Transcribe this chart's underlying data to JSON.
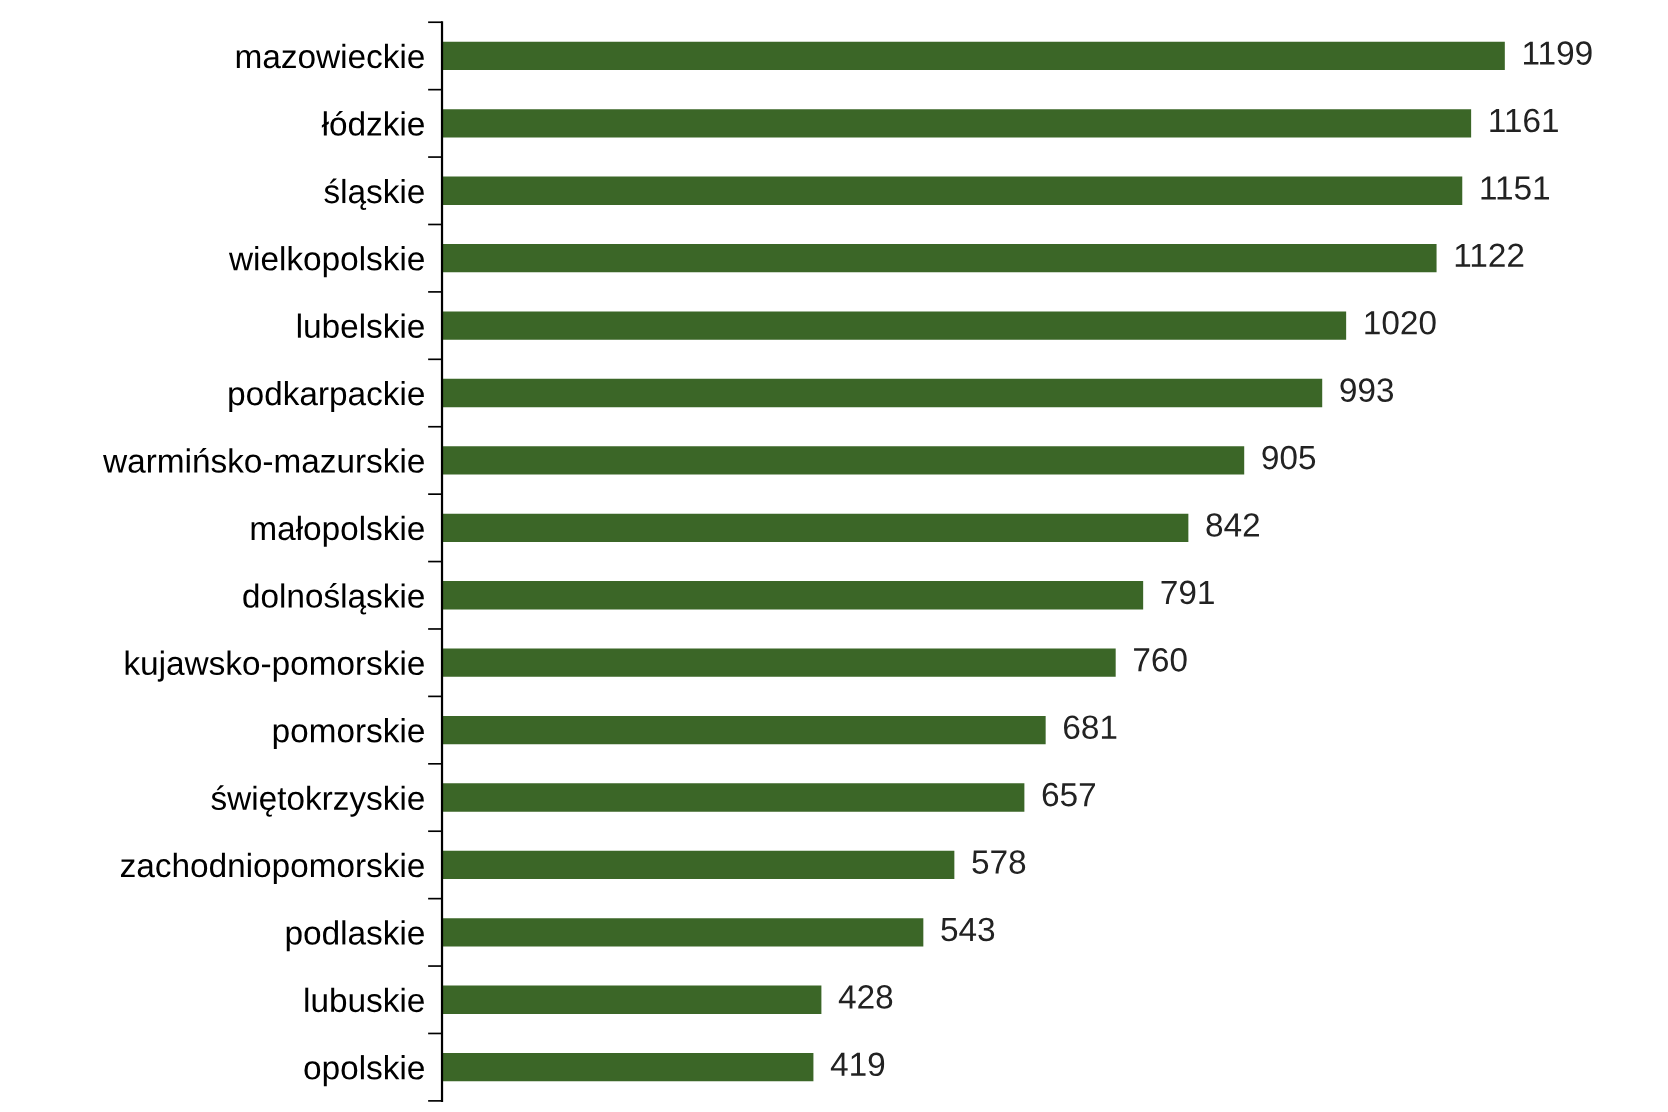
{
  "chart_data": {
    "type": "bar",
    "orientation": "horizontal",
    "categories": [
      "mazowieckie",
      "łódzkie",
      "śląskie",
      "wielkopolskie",
      "lubelskie",
      "podkarpackie",
      "warmińsko-mazurskie",
      "małopolskie",
      "dolnośląskie",
      "kujawsko-pomorskie",
      "pomorskie",
      "świętokrzyskie",
      "zachodniopomorskie",
      "podlaskie",
      "lubuskie",
      "opolskie"
    ],
    "values": [
      1199,
      1161,
      1151,
      1122,
      1020,
      993,
      905,
      842,
      791,
      760,
      681,
      657,
      578,
      543,
      428,
      419
    ],
    "color": "#3b6627",
    "data_labels": true,
    "tick_labels": "y",
    "grid": false,
    "legend": false
  }
}
